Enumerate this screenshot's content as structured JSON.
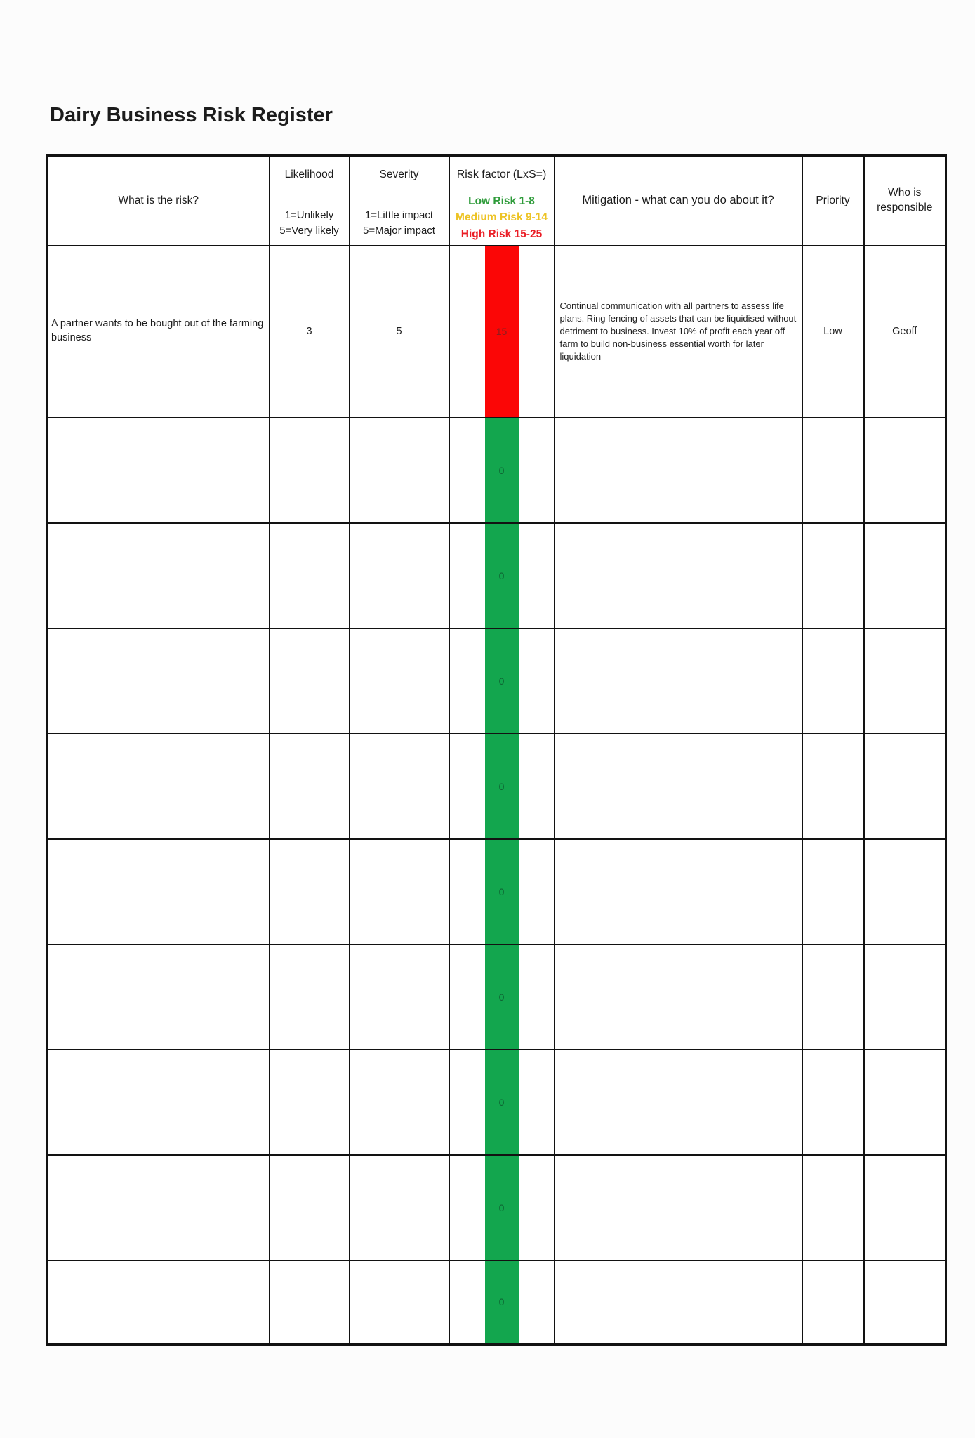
{
  "page": {
    "title": "Dairy Business Risk Register"
  },
  "colors": {
    "page_bg": "#fcfcfc",
    "border": "#121212",
    "high_fill": "#fb0606",
    "high_text": "#8c1e20",
    "low_fill": "#13a64e",
    "low_text": "#0e6332",
    "legend_low": "#2e9b3a",
    "legend_medium": "#edc324",
    "legend_high": "#ea1d25"
  },
  "table": {
    "header": {
      "risk": "What is the risk?",
      "likelihood": {
        "title": "Likelihood",
        "line1": "1=Unlikely",
        "line2": "5=Very likely"
      },
      "severity": {
        "title": "Severity",
        "line1": "1=Little impact",
        "line2": "5=Major impact"
      },
      "risk_factor": {
        "title": "Risk factor (LxS=)",
        "legend": [
          {
            "label": "Low Risk 1-8",
            "level": "low"
          },
          {
            "label": "Medium Risk 9-14",
            "level": "medium"
          },
          {
            "label": "High Risk 15-25",
            "level": "high"
          }
        ]
      },
      "mitigation": "Mitigation - what can you do about it?",
      "priority": "Priority",
      "who": "Who is responsible"
    },
    "rows": [
      {
        "risk": "A partner wants to be bought out of the farming business",
        "likelihood": "3",
        "severity": "5",
        "risk_factor": "15",
        "risk_level": "high",
        "mitigation": "Continual communication with all partners to assess life plans. Ring fencing of assets that can be liquidised without detriment to business. Invest 10% of profit each year off farm to build non-business essential worth for later liquidation",
        "priority": "Low",
        "who": "Geoff"
      },
      {
        "risk": "",
        "likelihood": "",
        "severity": "",
        "risk_factor": "0",
        "risk_level": "low",
        "mitigation": "",
        "priority": "",
        "who": ""
      },
      {
        "risk": "",
        "likelihood": "",
        "severity": "",
        "risk_factor": "0",
        "risk_level": "low",
        "mitigation": "",
        "priority": "",
        "who": ""
      },
      {
        "risk": "",
        "likelihood": "",
        "severity": "",
        "risk_factor": "0",
        "risk_level": "low",
        "mitigation": "",
        "priority": "",
        "who": ""
      },
      {
        "risk": "",
        "likelihood": "",
        "severity": "",
        "risk_factor": "0",
        "risk_level": "low",
        "mitigation": "",
        "priority": "",
        "who": ""
      },
      {
        "risk": "",
        "likelihood": "",
        "severity": "",
        "risk_factor": "0",
        "risk_level": "low",
        "mitigation": "",
        "priority": "",
        "who": ""
      },
      {
        "risk": "",
        "likelihood": "",
        "severity": "",
        "risk_factor": "0",
        "risk_level": "low",
        "mitigation": "",
        "priority": "",
        "who": ""
      },
      {
        "risk": "",
        "likelihood": "",
        "severity": "",
        "risk_factor": "0",
        "risk_level": "low",
        "mitigation": "",
        "priority": "",
        "who": ""
      },
      {
        "risk": "",
        "likelihood": "",
        "severity": "",
        "risk_factor": "0",
        "risk_level": "low",
        "mitigation": "",
        "priority": "",
        "who": ""
      },
      {
        "risk": "",
        "likelihood": "",
        "severity": "",
        "risk_factor": "0",
        "risk_level": "low",
        "mitigation": "",
        "priority": "",
        "who": ""
      }
    ]
  }
}
